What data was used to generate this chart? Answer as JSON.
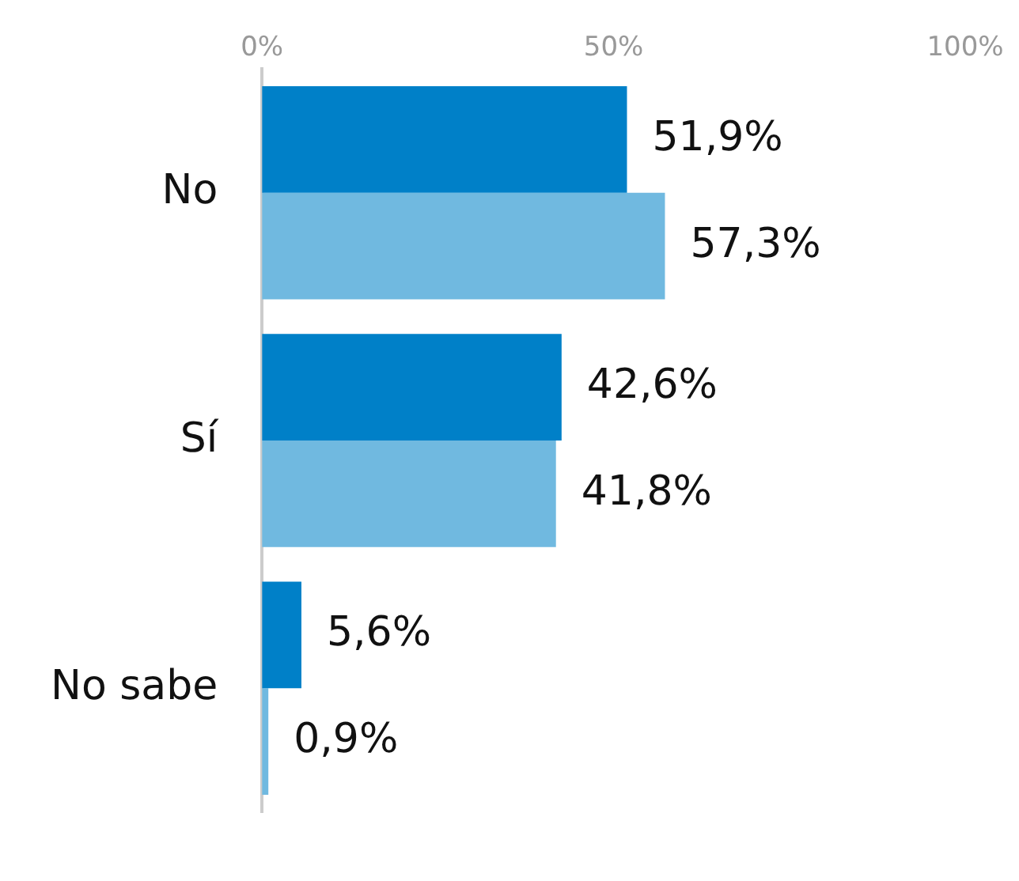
{
  "chart_data": {
    "type": "bar",
    "orientation": "horizontal",
    "categories": [
      "No",
      "Sí",
      "No sabe"
    ],
    "series": [
      {
        "color": "#0080c8",
        "values": [
          51.9,
          42.6,
          5.6
        ],
        "value_labels": [
          "51,9%",
          "42,6%",
          "5,6%"
        ]
      },
      {
        "color": "#70b9e0",
        "values": [
          57.3,
          41.8,
          0.9
        ],
        "value_labels": [
          "57,3%",
          "41,8%",
          "0,9%"
        ]
      }
    ],
    "xlim": [
      0,
      100
    ],
    "xticks": [
      {
        "value": 0,
        "label": "0%"
      },
      {
        "value": 50,
        "label": "50%"
      },
      {
        "value": 100,
        "label": "100%"
      }
    ],
    "grid": false,
    "legend": false
  }
}
